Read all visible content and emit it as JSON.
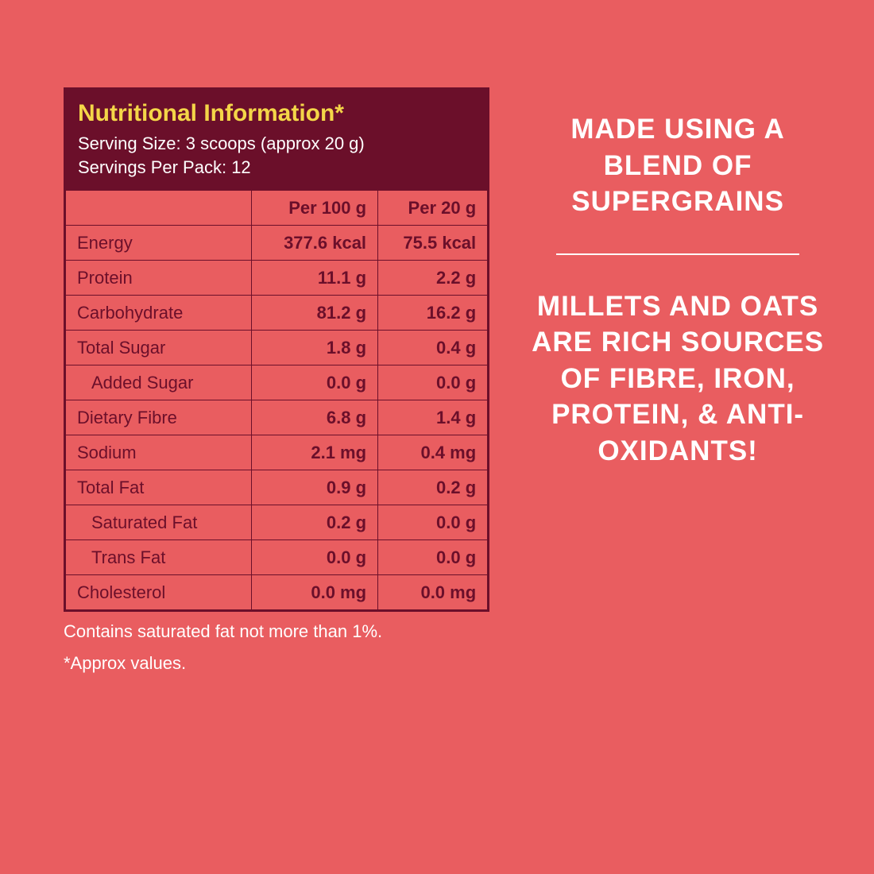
{
  "colors": {
    "background": "#e95d60",
    "box_border": "#6b0f2a",
    "header_bg": "#6b0f2a",
    "title": "#f4d648",
    "header_text": "#ffffff",
    "cell_text": "#6b0f2a",
    "footnote_text": "#ffffff",
    "promo_text": "#ffffff"
  },
  "nutrition": {
    "title": "Nutritional Information*",
    "serving_size": "Serving Size: 3 scoops (approx 20 g)",
    "servings_per_pack": "Servings Per Pack: 12",
    "columns": {
      "label": "",
      "per100": "Per 100 g",
      "per20": "Per 20 g"
    },
    "rows": [
      {
        "label": "Energy",
        "indent": false,
        "per100": "377.6 kcal",
        "per20": "75.5 kcal"
      },
      {
        "label": "Protein",
        "indent": false,
        "per100": "11.1 g",
        "per20": "2.2 g"
      },
      {
        "label": "Carbohydrate",
        "indent": false,
        "per100": "81.2 g",
        "per20": "16.2 g"
      },
      {
        "label": "Total Sugar",
        "indent": false,
        "per100": "1.8 g",
        "per20": "0.4 g"
      },
      {
        "label": "Added Sugar",
        "indent": true,
        "per100": "0.0 g",
        "per20": "0.0 g"
      },
      {
        "label": "Dietary Fibre",
        "indent": false,
        "per100": "6.8 g",
        "per20": "1.4 g"
      },
      {
        "label": "Sodium",
        "indent": false,
        "per100": "2.1 mg",
        "per20": "0.4 mg"
      },
      {
        "label": "Total Fat",
        "indent": false,
        "per100": "0.9 g",
        "per20": "0.2 g"
      },
      {
        "label": "Saturated Fat",
        "indent": true,
        "per100": "0.2 g",
        "per20": "0.0 g"
      },
      {
        "label": "Trans Fat",
        "indent": true,
        "per100": "0.0 g",
        "per20": "0.0 g"
      },
      {
        "label": "Cholesterol",
        "indent": false,
        "per100": "0.0 mg",
        "per20": "0.0 mg"
      }
    ],
    "footnote1": "Contains saturated fat not more than 1%.",
    "footnote2": "*Approx values."
  },
  "promo": {
    "block1": "MADE USING A BLEND OF SUPERGRAINS",
    "block2": "MILLETS AND OATS ARE RICH SOURCES OF FIBRE,  IRON, PROTEIN, & ANTI-OXIDANTS!"
  },
  "typography": {
    "title_fontsize": 30,
    "body_fontsize": 22,
    "promo_fontsize": 35
  }
}
